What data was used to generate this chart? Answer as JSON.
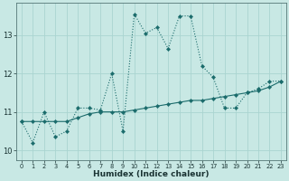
{
  "xlabel": "Humidex (Indice chaleur)",
  "bg_color": "#c8e8e4",
  "grid_color": "#aad4d0",
  "line_color": "#1a6b6b",
  "xlim": [
    -0.5,
    23.5
  ],
  "ylim": [
    9.75,
    13.85
  ],
  "yticks": [
    10,
    11,
    12,
    13
  ],
  "xtick_labels": [
    "0",
    "1",
    "2",
    "3",
    "4",
    "5",
    "6",
    "7",
    "8",
    "9",
    "10",
    "11",
    "12",
    "13",
    "14",
    "15",
    "16",
    "17",
    "18",
    "19",
    "20",
    "21",
    "22",
    "23"
  ],
  "dotted_x": [
    0,
    1,
    2,
    3,
    4,
    5,
    6,
    7,
    8,
    9,
    10,
    11,
    12,
    13,
    14,
    15,
    16,
    17,
    18,
    19,
    20,
    21,
    22,
    23
  ],
  "dotted_y": [
    10.75,
    10.2,
    11.0,
    10.35,
    10.5,
    11.1,
    11.1,
    11.05,
    12.0,
    10.5,
    13.55,
    13.05,
    13.2,
    12.65,
    13.5,
    13.5,
    12.2,
    11.9,
    11.1,
    11.1,
    11.5,
    11.6,
    11.8,
    11.8
  ],
  "solid_x": [
    0,
    1,
    2,
    3,
    4,
    5,
    6,
    7,
    8,
    9,
    10,
    11,
    12,
    13,
    14,
    15,
    16,
    17,
    18,
    19,
    20,
    21,
    22,
    23
  ],
  "solid_y": [
    10.75,
    10.75,
    10.75,
    10.75,
    10.75,
    10.85,
    10.95,
    11.0,
    11.0,
    11.0,
    11.05,
    11.1,
    11.15,
    11.2,
    11.25,
    11.3,
    11.3,
    11.35,
    11.4,
    11.45,
    11.5,
    11.55,
    11.65,
    11.8
  ]
}
